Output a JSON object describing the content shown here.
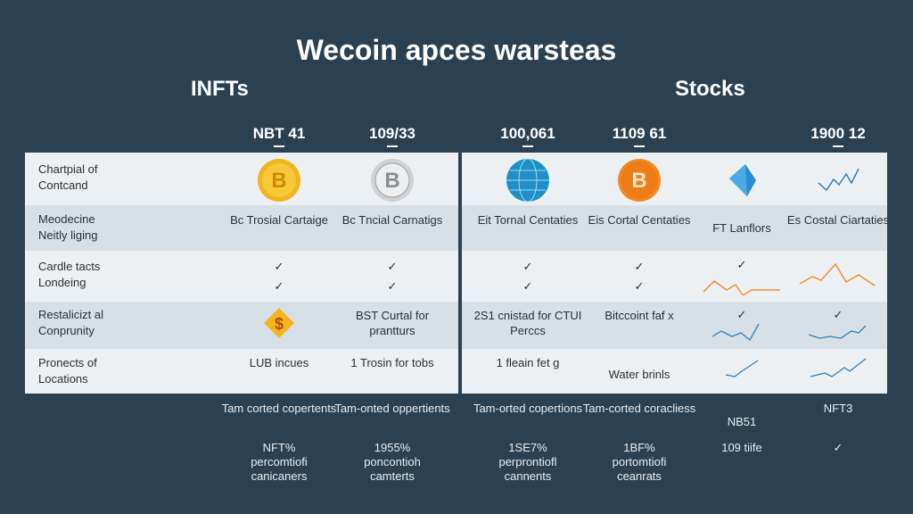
{
  "title": "Wecoin apces warsteas",
  "sections": {
    "left": "INFTs",
    "right": "Stocks"
  },
  "columns": [
    "NBT 41",
    "109/33",
    "100,061",
    "1109 61",
    "",
    "1900 12"
  ],
  "rows": [
    {
      "label": "Chartpial of Contcand",
      "cells": [
        "icon:bitcoin-gold",
        "icon:bitcoin-silver",
        "icon:globe",
        "icon:bitcoin-orange",
        "icon:diamond",
        "icon:sparkline-blue"
      ]
    },
    {
      "label": "Meodecine Neitly liging",
      "cells": [
        "Bc Trosial Cartaige",
        "Bc Tncial Carnatigs",
        "Eit Tornal Centaties",
        "Eis Cortal Centaties",
        "FT Lanflors",
        "Es Costal Ciartaties"
      ]
    },
    {
      "label": "Cardle tacts Londeing",
      "cells": [
        "✓ ✓",
        "✓ ✓",
        "✓ ✓",
        "✓ ✓",
        "✓ + sparkline-orange",
        "sparkline-orange"
      ]
    },
    {
      "label": "Restalicizt al Conprunity",
      "cells": [
        "icon:dollar-diamond",
        "BST Curtal for prantturs",
        "2S1 cnistad for CTUI Perccs",
        "Bitccoint faf x",
        "✓ + sparkline-blue",
        "✓ + sparkline-blue"
      ]
    },
    {
      "label": "Pronects of Locations",
      "cells": [
        "LUB incues",
        "1 Trosin for tobs",
        "1 fleain fet g",
        "Water brinls",
        "sparkline-blue",
        "sparkline-blue"
      ]
    }
  ],
  "footer_row1": [
    "Tam corted copertents",
    "Tam-onted oppertients",
    "Tam-orted copertions",
    "Tam-corted coracliess",
    "NB51",
    "NFT3"
  ],
  "footer_row2": [
    "NFT% percomtiofi canicaners",
    "1955% poncontioh camterts",
    "1SE7% perprontiofl cannents",
    "1BF% portomtiofi ceanrats",
    "109 tiife",
    "✓"
  ],
  "colors": {
    "background": "#2b4152",
    "panel": "#edf0f3",
    "band": "#d8e0e7",
    "orange": "#f0902c",
    "blue": "#2f7fb8"
  }
}
